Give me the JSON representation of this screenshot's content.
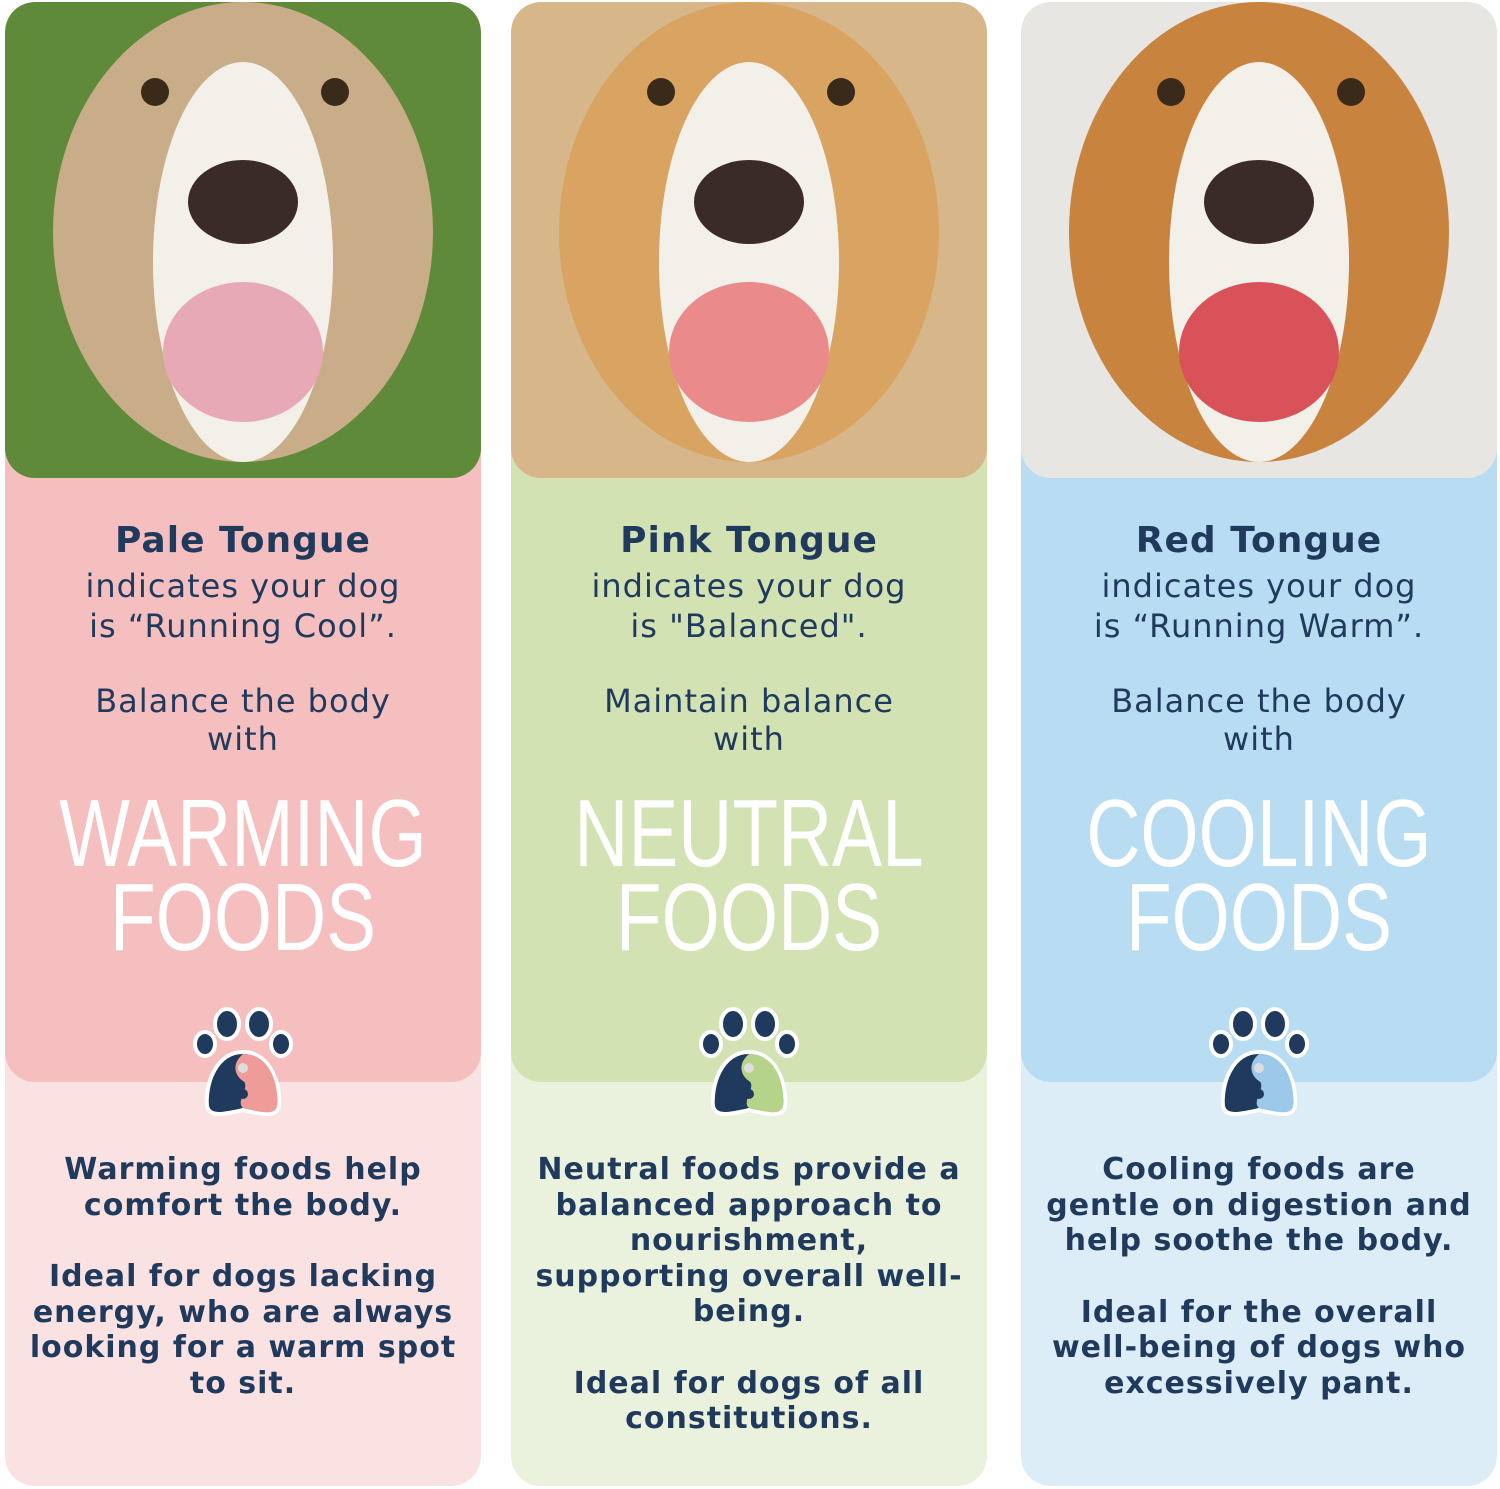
{
  "columns": [
    {
      "title": "Pale Tongue",
      "indicates": "indicates your dog",
      "state": "is “Running Cool”.",
      "balance_line1": "Balance the body",
      "balance_line2": "with",
      "food_line1": "WARMING",
      "food_line2": "FOODS",
      "desc1": "Warming foods help comfort the body.",
      "desc2": "Ideal for dogs lacking energy, who are always looking for a warm spot to sit.",
      "colors": {
        "upper": "#f5bfbf",
        "lower": "#fbe2e2",
        "accent": "#ef9b98"
      }
    },
    {
      "title": "Pink Tongue",
      "indicates": "indicates your dog",
      "state": "is \"Balanced\".",
      "balance_line1": "Maintain balance",
      "balance_line2": "with",
      "food_line1": "NEUTRAL",
      "food_line2": "FOODS",
      "desc1": "Neutral foods provide a balanced approach to nourishment, supporting overall well-being.",
      "desc2": "Ideal for dogs of all constitutions.",
      "colors": {
        "upper": "#d3e2b2",
        "lower": "#eaf1dc",
        "accent": "#b5d48a"
      }
    },
    {
      "title": "Red Tongue",
      "indicates": "indicates your dog",
      "state": "is “Running Warm”.",
      "balance_line1": "Balance the body",
      "balance_line2": "with",
      "food_line1": "COOLING",
      "food_line2": "FOODS",
      "desc1": "Cooling foods are gentle on digestion and help soothe the body.",
      "desc2": "Ideal for the overall well-being of dogs who excessively pant.",
      "colors": {
        "upper": "#b8dcf1",
        "lower": "#dcedf8",
        "accent": "#9cc8ea"
      }
    }
  ],
  "icons": [
    "dog-photo",
    "yin-yang-paw-icon"
  ]
}
